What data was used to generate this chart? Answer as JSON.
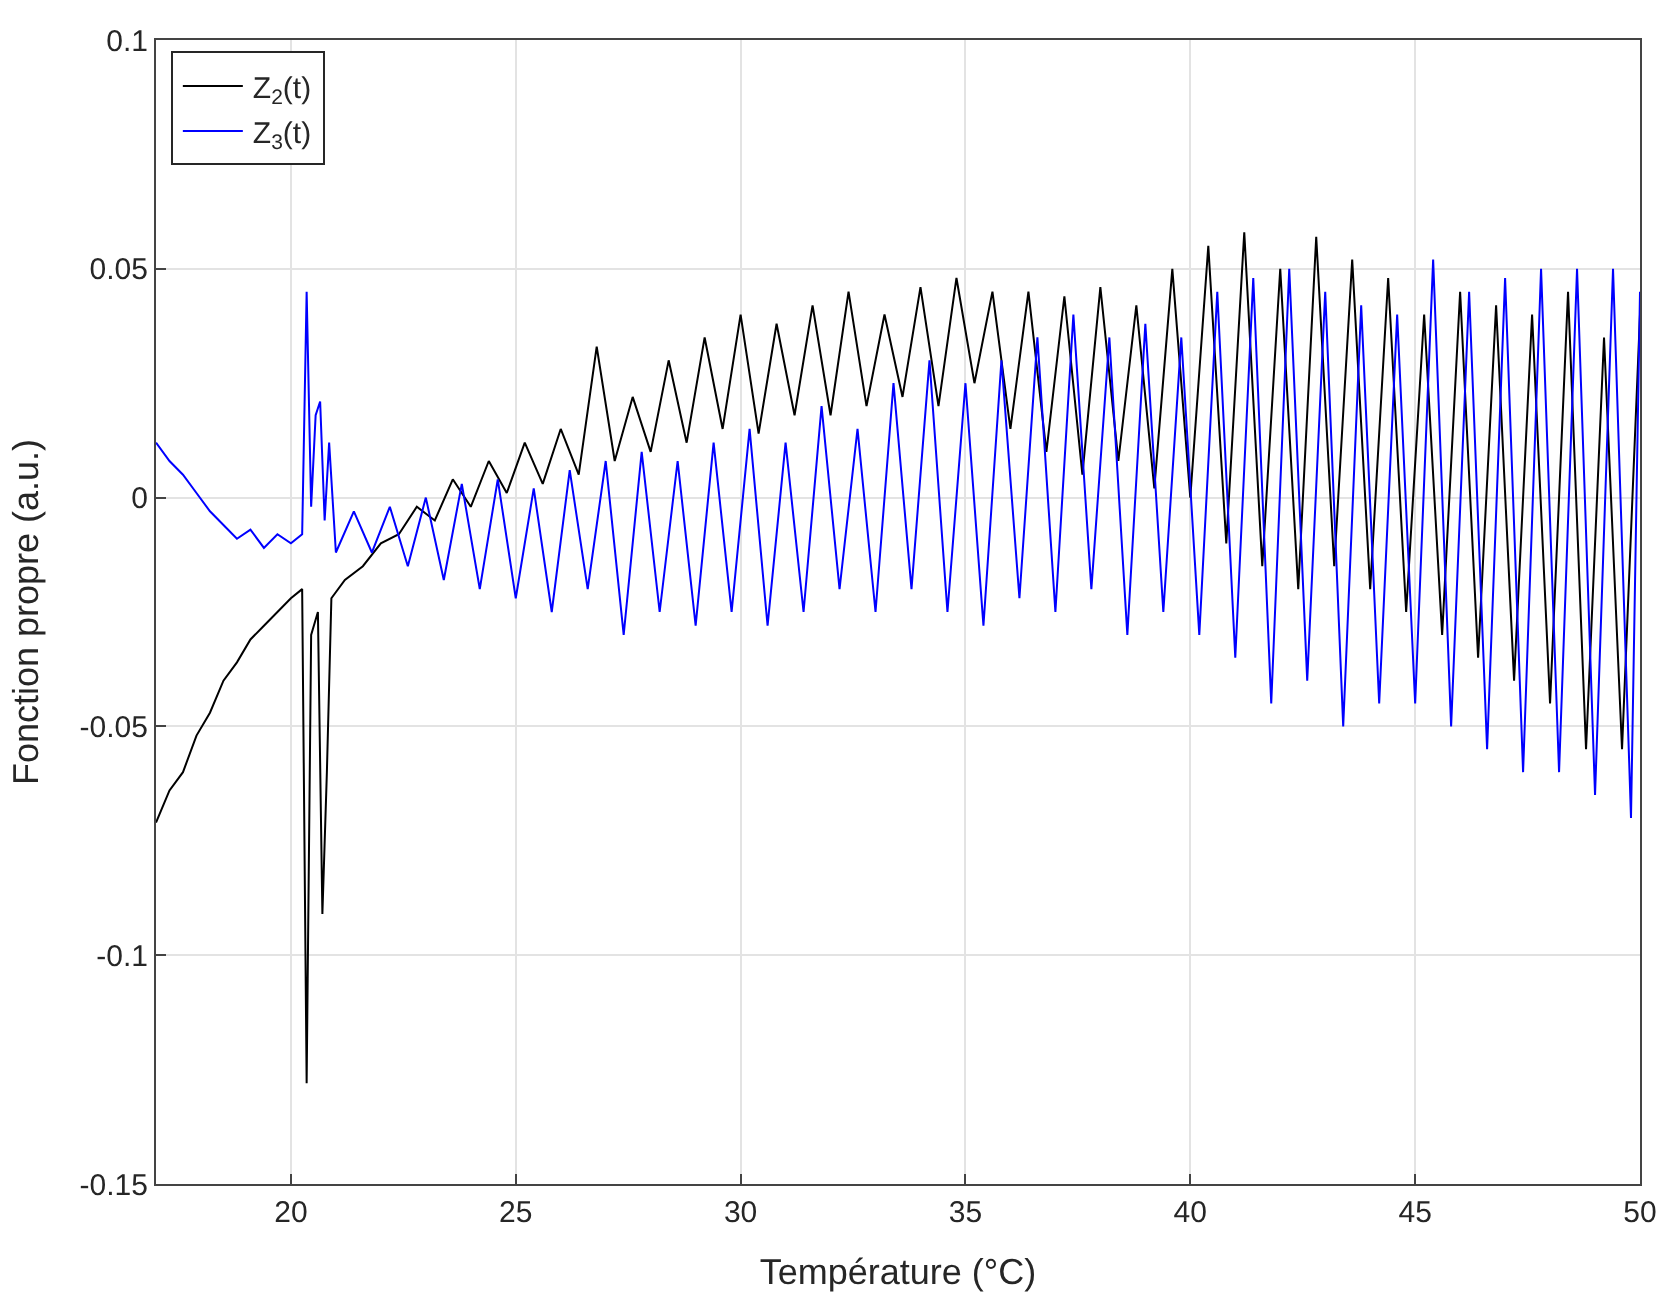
{
  "chart_data": {
    "type": "line",
    "xlabel": "Température (°C)",
    "ylabel": "Fonction propre (a.u.)",
    "xlim": [
      17,
      50
    ],
    "xticks": [
      20,
      25,
      30,
      35,
      40,
      45,
      50
    ],
    "ylim": [
      -0.15,
      0.1
    ],
    "yticks": [
      -0.15,
      -0.1,
      -0.05,
      0,
      0.05,
      0.1
    ],
    "grid": true,
    "legend": "top left",
    "series": [
      {
        "name": "Z$_{2}$(t)",
        "color": "#000000",
        "x": [
          17,
          17.3,
          17.6,
          17.9,
          18.2,
          18.5,
          18.8,
          19.1,
          19.4,
          19.7,
          20.0,
          20.25,
          20.35,
          20.45,
          20.6,
          20.7,
          20.8,
          20.9,
          21.2,
          21.6,
          22.0,
          22.4,
          22.8,
          23.2,
          23.6,
          24.0,
          24.4,
          24.8,
          25.2,
          25.6,
          26.0,
          26.4,
          26.8,
          27.2,
          27.6,
          28.0,
          28.4,
          28.8,
          29.2,
          29.6,
          30.0,
          30.4,
          30.8,
          31.2,
          31.6,
          32.0,
          32.4,
          32.8,
          33.2,
          33.6,
          34.0,
          34.4,
          34.8,
          35.2,
          35.6,
          36.0,
          36.4,
          36.8,
          37.2,
          37.6,
          38.0,
          38.4,
          38.8,
          39.2,
          39.6,
          40.0,
          40.4,
          40.8,
          41.2,
          41.6,
          42.0,
          42.4,
          42.8,
          43.2,
          43.6,
          44.0,
          44.4,
          44.8,
          45.2,
          45.6,
          46.0,
          46.4,
          46.8,
          47.2,
          47.6,
          48.0,
          48.4,
          48.8,
          49.2,
          49.6,
          50.0
        ],
        "values": [
          -0.071,
          -0.064,
          -0.06,
          -0.052,
          -0.047,
          -0.04,
          -0.036,
          -0.031,
          -0.028,
          -0.025,
          -0.022,
          -0.02,
          -0.128,
          -0.03,
          -0.025,
          -0.091,
          -0.06,
          -0.022,
          -0.018,
          -0.015,
          -0.01,
          -0.008,
          -0.002,
          -0.005,
          0.004,
          -0.002,
          0.008,
          0.001,
          0.012,
          0.003,
          0.015,
          0.005,
          0.033,
          0.008,
          0.022,
          0.01,
          0.03,
          0.012,
          0.035,
          0.015,
          0.04,
          0.014,
          0.038,
          0.018,
          0.042,
          0.018,
          0.045,
          0.02,
          0.04,
          0.022,
          0.046,
          0.02,
          0.048,
          0.025,
          0.045,
          0.015,
          0.045,
          0.01,
          0.044,
          0.005,
          0.046,
          0.008,
          0.042,
          0.002,
          0.05,
          0.0,
          0.055,
          -0.01,
          0.058,
          -0.015,
          0.05,
          -0.02,
          0.057,
          -0.015,
          0.052,
          -0.02,
          0.048,
          -0.025,
          0.04,
          -0.03,
          0.045,
          -0.035,
          0.042,
          -0.04,
          0.04,
          -0.045,
          0.045,
          -0.055,
          0.035,
          -0.055,
          0.04
        ]
      },
      {
        "name": "Z$_{3}$(t)",
        "color": "#0000ff",
        "x": [
          17,
          17.3,
          17.6,
          17.9,
          18.2,
          18.5,
          18.8,
          19.1,
          19.4,
          19.7,
          20.0,
          20.25,
          20.35,
          20.45,
          20.55,
          20.65,
          20.75,
          20.85,
          21.0,
          21.4,
          21.8,
          22.2,
          22.6,
          23.0,
          23.4,
          23.8,
          24.2,
          24.6,
          25.0,
          25.4,
          25.8,
          26.2,
          26.6,
          27.0,
          27.4,
          27.8,
          28.2,
          28.6,
          29.0,
          29.4,
          29.8,
          30.2,
          30.6,
          31.0,
          31.4,
          31.8,
          32.2,
          32.6,
          33.0,
          33.4,
          33.8,
          34.2,
          34.6,
          35.0,
          35.4,
          35.8,
          36.2,
          36.6,
          37.0,
          37.4,
          37.8,
          38.2,
          38.6,
          39.0,
          39.4,
          39.8,
          40.2,
          40.6,
          41.0,
          41.4,
          41.8,
          42.2,
          42.6,
          43.0,
          43.4,
          43.8,
          44.2,
          44.6,
          45.0,
          45.4,
          45.8,
          46.2,
          46.6,
          47.0,
          47.4,
          47.8,
          48.2,
          48.6,
          49.0,
          49.4,
          49.8,
          50.0
        ],
        "values": [
          0.012,
          0.008,
          0.005,
          0.001,
          -0.003,
          -0.006,
          -0.009,
          -0.007,
          -0.011,
          -0.008,
          -0.01,
          -0.008,
          0.045,
          -0.002,
          0.018,
          0.021,
          -0.005,
          0.012,
          -0.012,
          -0.003,
          -0.012,
          -0.002,
          -0.015,
          0.0,
          -0.018,
          0.003,
          -0.02,
          0.004,
          -0.022,
          0.002,
          -0.025,
          0.006,
          -0.02,
          0.008,
          -0.03,
          0.01,
          -0.025,
          0.008,
          -0.028,
          0.012,
          -0.025,
          0.015,
          -0.028,
          0.012,
          -0.025,
          0.02,
          -0.02,
          0.015,
          -0.025,
          0.025,
          -0.02,
          0.03,
          -0.025,
          0.025,
          -0.028,
          0.03,
          -0.022,
          0.035,
          -0.025,
          0.04,
          -0.02,
          0.035,
          -0.03,
          0.038,
          -0.025,
          0.035,
          -0.03,
          0.045,
          -0.035,
          0.048,
          -0.045,
          0.05,
          -0.04,
          0.045,
          -0.05,
          0.042,
          -0.045,
          0.04,
          -0.045,
          0.052,
          -0.05,
          0.045,
          -0.055,
          0.048,
          -0.06,
          0.05,
          -0.06,
          0.05,
          -0.065,
          0.05,
          -0.07,
          0.045
        ]
      }
    ]
  }
}
